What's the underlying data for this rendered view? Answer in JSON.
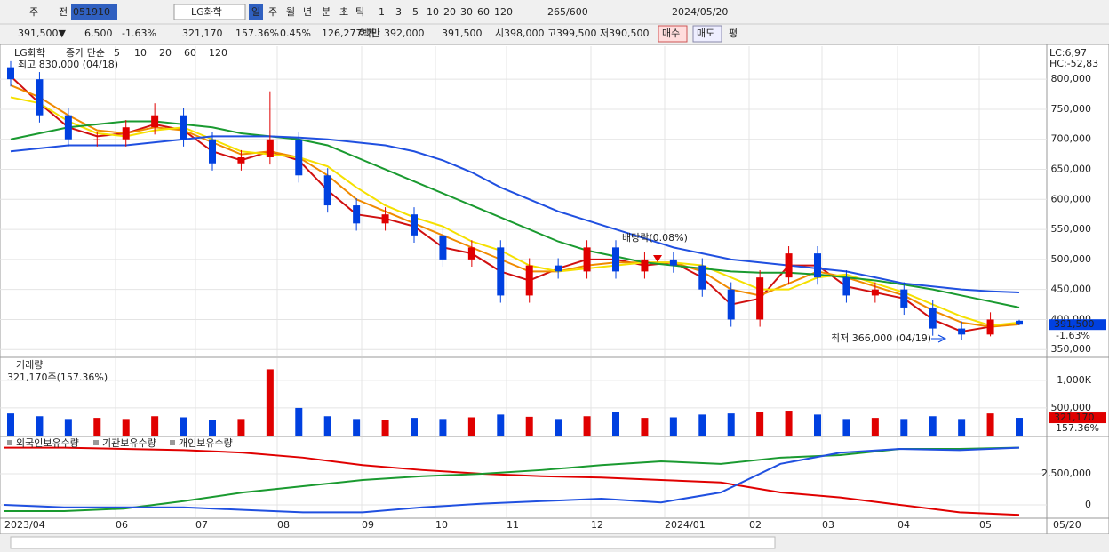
{
  "toolbar": {
    "row1": [
      "주",
      "전",
      "051910",
      "LG화학",
      "일",
      "주",
      "월",
      "년",
      "분",
      "초",
      "틱",
      "1",
      "3",
      "5",
      "10",
      "20",
      "30",
      "60",
      "120",
      "265/600",
      "2024/05/20"
    ],
    "row2": [
      "391,500▼",
      "6,500",
      "-1.63%",
      "321,170",
      "157.36%",
      "0.45%",
      "126,277백만",
      "호가",
      "392,000",
      "391,500",
      "시",
      "398,000",
      "고",
      "399,500",
      "저",
      "390,500",
      "매수",
      "매도",
      "평"
    ]
  },
  "x_labels": [
    "2023/04",
    "06",
    "07",
    "08",
    "09",
    "10",
    "11",
    "12",
    "2024/01",
    "02",
    "03",
    "04",
    "05",
    "05/20"
  ],
  "side": {
    "lc": "LC:6,97",
    "hc": "HC:-52,83"
  },
  "chart_data": [
    {
      "type": "candlestick",
      "title": "LG화학",
      "legend_title": "종가 단순",
      "up_color": "#e00000",
      "down_color": "#0040e0",
      "high_label": "최고 830,000 (04/18)",
      "low_label": "최저 366,000 (04/19)",
      "annotation": "배당락(0.08%)",
      "current_label": "391,500",
      "current_change": "-1.63%",
      "open": [
        820000,
        800000,
        740000,
        700000,
        700000,
        720000,
        740000,
        700000,
        660000,
        670000,
        700000,
        640000,
        590000,
        560000,
        575000,
        540000,
        500000,
        520000,
        440000,
        490000,
        480000,
        520000,
        480000,
        500000,
        490000,
        450000,
        400000,
        470000,
        510000,
        470000,
        440000,
        450000,
        420000,
        385000,
        375000,
        398000
      ],
      "high": [
        830000,
        812000,
        752000,
        712000,
        732000,
        760000,
        752000,
        712000,
        682000,
        780000,
        712000,
        652000,
        602000,
        587000,
        587000,
        552000,
        532000,
        532000,
        502000,
        502000,
        532000,
        532000,
        512000,
        512000,
        502000,
        462000,
        482000,
        522000,
        522000,
        482000,
        462000,
        462000,
        432000,
        397000,
        412000,
        399500
      ],
      "low": [
        788000,
        728000,
        688000,
        688000,
        688000,
        708000,
        688000,
        648000,
        648000,
        658000,
        628000,
        578000,
        548000,
        548000,
        528000,
        488000,
        488000,
        428000,
        428000,
        468000,
        468000,
        468000,
        468000,
        478000,
        438000,
        388000,
        388000,
        458000,
        458000,
        428000,
        428000,
        408000,
        373000,
        366000,
        372000,
        390500
      ],
      "close": [
        800000,
        740000,
        700000,
        700000,
        720000,
        740000,
        700000,
        660000,
        670000,
        700000,
        640000,
        590000,
        560000,
        575000,
        540000,
        500000,
        520000,
        440000,
        490000,
        480000,
        520000,
        480000,
        500000,
        490000,
        450000,
        400000,
        470000,
        510000,
        470000,
        440000,
        450000,
        420000,
        385000,
        375000,
        400000,
        391500
      ],
      "series": [
        {
          "name": "5",
          "color": "#d01010",
          "values": [
            805000,
            760000,
            720000,
            705000,
            710000,
            725000,
            715000,
            680000,
            665000,
            680000,
            665000,
            615000,
            575000,
            568000,
            555000,
            520000,
            510000,
            480000,
            465000,
            485000,
            500000,
            500000,
            490000,
            495000,
            470000,
            425000,
            435000,
            490000,
            490000,
            455000,
            445000,
            435000,
            400000,
            380000,
            388000,
            395000
          ]
        },
        {
          "name": "10",
          "color": "#f08a00",
          "values": [
            790000,
            770000,
            740000,
            715000,
            710000,
            720000,
            715000,
            695000,
            675000,
            680000,
            670000,
            640000,
            600000,
            580000,
            560000,
            540000,
            520000,
            500000,
            480000,
            480000,
            490000,
            495000,
            495000,
            495000,
            480000,
            450000,
            440000,
            460000,
            480000,
            470000,
            455000,
            440000,
            415000,
            395000,
            388000,
            392000
          ]
        },
        {
          "name": "20",
          "color": "#f5e000",
          "values": [
            770000,
            760000,
            730000,
            710000,
            705000,
            715000,
            720000,
            700000,
            680000,
            675000,
            670000,
            655000,
            620000,
            590000,
            570000,
            555000,
            530000,
            515000,
            490000,
            480000,
            485000,
            490000,
            495000,
            495000,
            490000,
            470000,
            450000,
            450000,
            470000,
            475000,
            460000,
            445000,
            425000,
            405000,
            390000,
            395000
          ]
        },
        {
          "name": "60",
          "color": "#1a9a30",
          "values": [
            700000,
            710000,
            720000,
            725000,
            730000,
            730000,
            725000,
            720000,
            710000,
            705000,
            700000,
            690000,
            670000,
            650000,
            630000,
            610000,
            590000,
            570000,
            550000,
            530000,
            515000,
            505000,
            495000,
            490000,
            485000,
            480000,
            478000,
            478000,
            475000,
            470000,
            465000,
            458000,
            450000,
            440000,
            430000,
            420000
          ]
        },
        {
          "name": "120",
          "color": "#2050e0",
          "values": [
            680000,
            685000,
            690000,
            690000,
            690000,
            695000,
            700000,
            705000,
            705000,
            705000,
            703000,
            700000,
            695000,
            690000,
            680000,
            665000,
            645000,
            620000,
            600000,
            580000,
            565000,
            550000,
            535000,
            520000,
            510000,
            500000,
            495000,
            490000,
            485000,
            480000,
            470000,
            460000,
            455000,
            450000,
            447000,
            445000
          ]
        }
      ],
      "ylim": [
        340000,
        855000
      ],
      "yticks": [
        {
          "value": 350000,
          "label": "350,000"
        },
        {
          "value": 400000,
          "label": "400,000"
        },
        {
          "value": 450000,
          "label": "450,000"
        },
        {
          "value": 500000,
          "label": "500,000"
        },
        {
          "value": 550000,
          "label": "550,000"
        },
        {
          "value": 600000,
          "label": "600,000"
        },
        {
          "value": 650000,
          "label": "650,000"
        },
        {
          "value": 700000,
          "label": "700,000"
        },
        {
          "value": 750000,
          "label": "750,000"
        },
        {
          "value": 800000,
          "label": "800,000"
        }
      ],
      "grid": true
    },
    {
      "type": "bar",
      "title": "거래량",
      "subtitle": "321,170주(157.36%)",
      "last_label": "321,170",
      "last_change": "157.36%",
      "values": [
        400000,
        350000,
        300000,
        320000,
        300000,
        350000,
        330000,
        280000,
        300000,
        1200000,
        500000,
        350000,
        300000,
        280000,
        320000,
        300000,
        330000,
        380000,
        340000,
        300000,
        350000,
        420000,
        320000,
        330000,
        380000,
        400000,
        430000,
        450000,
        380000,
        300000,
        320000,
        300000,
        350000,
        300000,
        400000,
        321170
      ],
      "ylim": [
        0,
        1400000
      ],
      "yticks": [
        {
          "value": 500000,
          "label": "500,000"
        },
        {
          "value": 1000000,
          "label": "1,000K"
        }
      ],
      "grid": true
    },
    {
      "type": "line",
      "ylim": [
        -1000000,
        5430000
      ],
      "yticks": [
        0,
        {
          "value": 2500000,
          "label": "2,500,000"
        }
      ],
      "grid": true,
      "series": [
        {
          "name": "외국인보유수량",
          "color": "#e00000",
          "values": [
            4600000,
            4600000,
            4500000,
            4400000,
            4200000,
            3800000,
            3200000,
            2800000,
            2500000,
            2300000,
            2200000,
            2000000,
            1800000,
            1000000,
            600000,
            0,
            -600000,
            -800000
          ]
        },
        {
          "name": "기관보유수량",
          "color": "#1a9a30",
          "values": [
            -500000,
            -500000,
            -300000,
            300000,
            1000000,
            1500000,
            2000000,
            2300000,
            2500000,
            2800000,
            3200000,
            3500000,
            3300000,
            3800000,
            4000000,
            4500000,
            4500000,
            4600000
          ]
        },
        {
          "name": "개인보유수량",
          "color": "#2050e0",
          "values": [
            0,
            -200000,
            -200000,
            -200000,
            -400000,
            -600000,
            -600000,
            -200000,
            100000,
            300000,
            500000,
            200000,
            1000000,
            3300000,
            4200000,
            4500000,
            4400000,
            4600000
          ]
        }
      ]
    }
  ]
}
